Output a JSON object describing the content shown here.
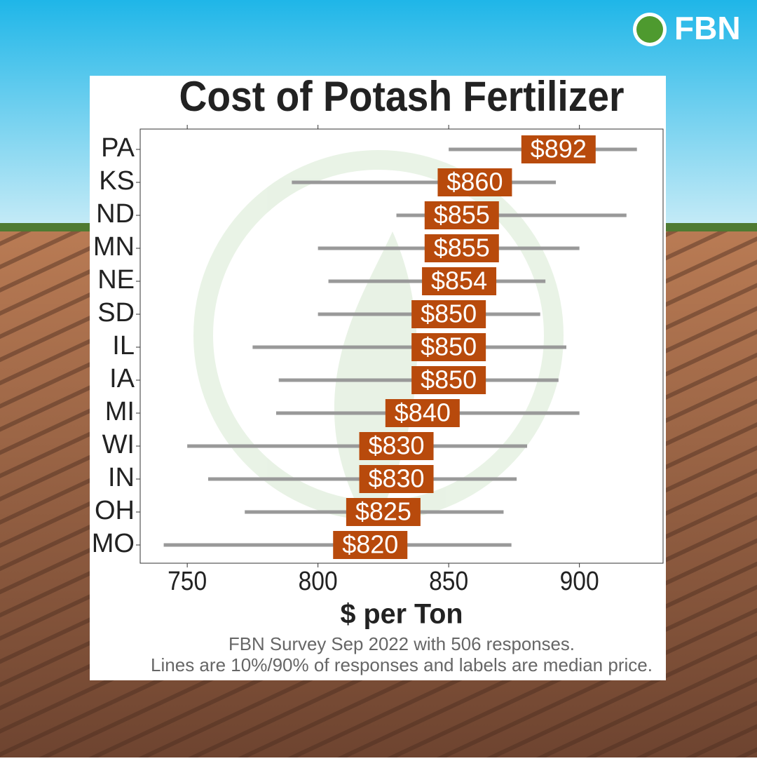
{
  "logo": "FBN",
  "chart_data": {
    "type": "range",
    "title": "Cost of Potash Fertilizer",
    "x_label": "$ per Ton",
    "notes": [
      "FBN Survey Sep 2022 with 506 responses.",
      "Lines are 10%/90% of responses and labels are median price."
    ],
    "categories": [
      "PA",
      "KS",
      "ND",
      "MN",
      "NE",
      "SD",
      "IL",
      "IA",
      "MI",
      "WI",
      "IN",
      "OH",
      "MO"
    ],
    "low": [
      850,
      790,
      830,
      800,
      804,
      800,
      775,
      785,
      784,
      750,
      758,
      772,
      741
    ],
    "high": [
      922,
      891,
      918,
      900,
      887,
      885,
      895,
      892,
      900,
      880,
      876,
      871,
      874
    ],
    "values": [
      892,
      860,
      855,
      855,
      854,
      850,
      850,
      850,
      840,
      830,
      830,
      825,
      820
    ],
    "value_labels": [
      "$892",
      "$860",
      "$855",
      "$855",
      "$854",
      "$850",
      "$850",
      "$850",
      "$840",
      "$830",
      "$830",
      "$825",
      "$820"
    ],
    "line_color": "#999999",
    "label_color": "#b84a0c",
    "xlim": [
      732,
      932
    ],
    "xticks": [
      750,
      800,
      850,
      900
    ]
  }
}
